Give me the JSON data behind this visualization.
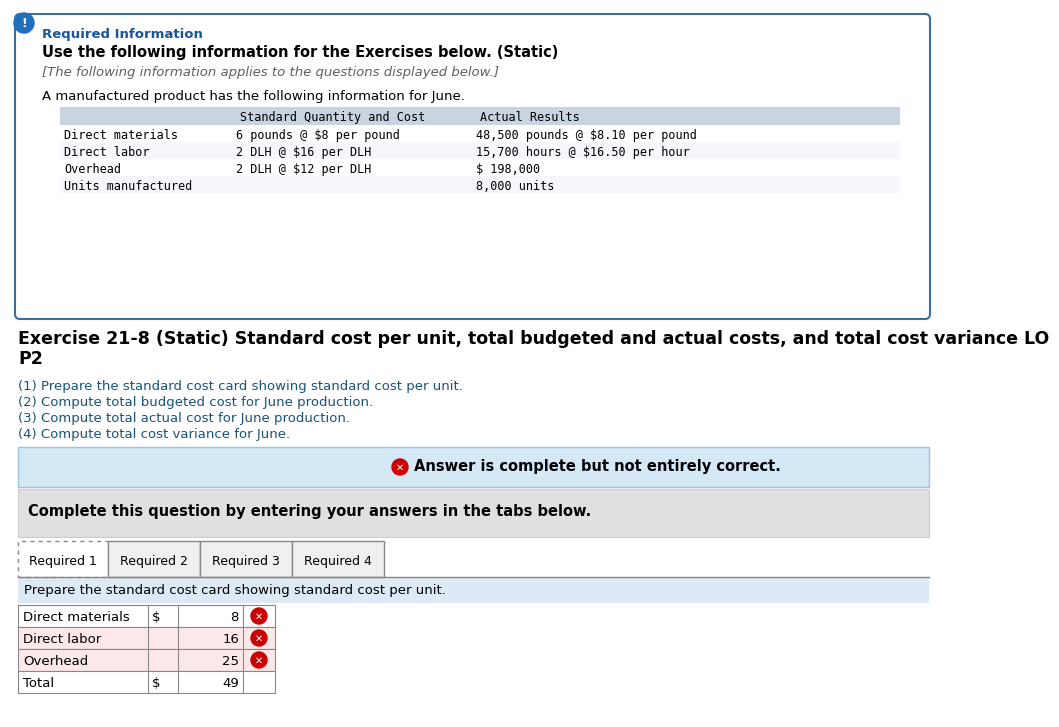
{
  "bg_color": "#ffffff",
  "outer_border_color": "#3a6da0",
  "info_box": {
    "title_bold": "Required Information",
    "title_color": "#1a5499",
    "subtitle": "Use the following information for the Exercises below. (Static)",
    "italic_line": "[The following information applies to the questions displayed below.]",
    "body_line": "A manufactured product has the following information for June.",
    "table_header_bg": "#c8d4e0",
    "table_header_col1": "Standard Quantity and Cost",
    "table_header_col2": "Actual Results",
    "table_rows": [
      [
        "Direct materials",
        "6 pounds @ $8 per pound",
        "48,500 pounds @ $8.10 per pound"
      ],
      [
        "Direct labor",
        "2 DLH @ $16 per DLH",
        "15,700 hours @ $16.50 per hour"
      ],
      [
        "Overhead",
        "2 DLH @ $12 per DLH",
        "$ 198,000"
      ],
      [
        "Units manufactured",
        "",
        "8,000 units"
      ]
    ],
    "table_row_bg_even": "#f5f7fa",
    "table_row_bg_odd": "#ffffff"
  },
  "exercise_line1": "Exercise 21-8 (Static) Standard cost per unit, total budgeted and actual costs, and total cost variance LO",
  "exercise_line2": "P2",
  "numbered_items": [
    "(1) Prepare the standard cost card showing standard cost per unit.",
    "(2) Compute total budgeted cost for June production.",
    "(3) Compute total actual cost for June production.",
    "(4) Compute total cost variance for June."
  ],
  "numbered_color": "#1a5276",
  "answer_banner_bg": "#d5e8f5",
  "answer_banner_border": "#a0c4e0",
  "answer_banner_text": "Answer is complete but not entirely correct.",
  "complete_banner_bg": "#e0e0e0",
  "complete_banner_text": "Complete this question by entering your answers in the tabs below.",
  "tabs": [
    "Required 1",
    "Required 2",
    "Required 3",
    "Required 4"
  ],
  "tab_active": 0,
  "tab_instruction_bg": "#ddeaf5",
  "tab_instruction": "Prepare the standard cost card showing standard cost per unit.",
  "cost_table_rows": [
    {
      "label": "Direct materials",
      "dollar": "$",
      "value": "8",
      "has_error": true,
      "row_bg": "#ffffff"
    },
    {
      "label": "Direct labor",
      "dollar": "",
      "value": "16",
      "has_error": true,
      "row_bg": "#fce8e8"
    },
    {
      "label": "Overhead",
      "dollar": "",
      "value": "25",
      "has_error": true,
      "row_bg": "#fce8e8"
    },
    {
      "label": "Total",
      "dollar": "$",
      "value": "49",
      "has_error": false,
      "row_bg": "#ffffff"
    }
  ]
}
